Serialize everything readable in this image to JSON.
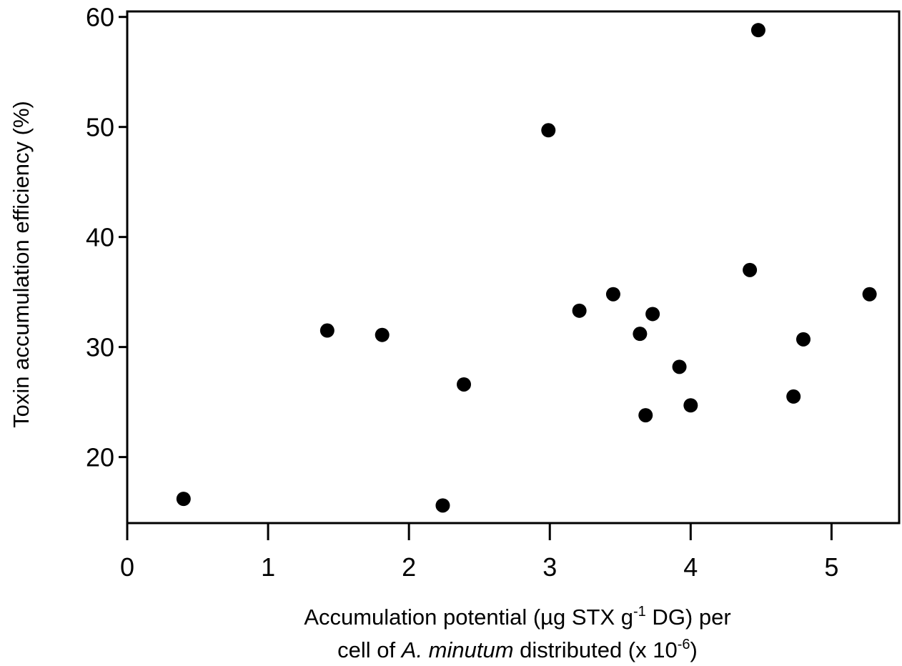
{
  "chart_data": {
    "type": "scatter",
    "y_label": "Toxin accumulation efficiency (%)",
    "x_label_line1": [
      "Accumulation potential (µg STX g",
      "-1",
      " DG) per"
    ],
    "x_label_line2": [
      "cell of ",
      "A. minutum",
      " distributed (x 10",
      "-6",
      ")"
    ],
    "xlim": [
      0,
      5.48
    ],
    "ylim": [
      14,
      60.5
    ],
    "xticks": [
      0,
      1,
      2,
      3,
      4,
      5
    ],
    "yticks": [
      20,
      30,
      40,
      50,
      60
    ],
    "color": "#000000",
    "x": [
      0.4,
      1.42,
      1.81,
      2.24,
      2.39,
      2.99,
      3.21,
      3.45,
      3.64,
      3.68,
      3.73,
      3.92,
      4.0,
      4.42,
      4.48,
      4.73,
      4.8,
      5.27
    ],
    "y": [
      16.2,
      31.5,
      31.1,
      15.6,
      26.6,
      49.7,
      33.3,
      34.8,
      31.2,
      23.8,
      33.0,
      28.2,
      24.7,
      37.0,
      58.8,
      25.5,
      30.7,
      34.8
    ]
  }
}
